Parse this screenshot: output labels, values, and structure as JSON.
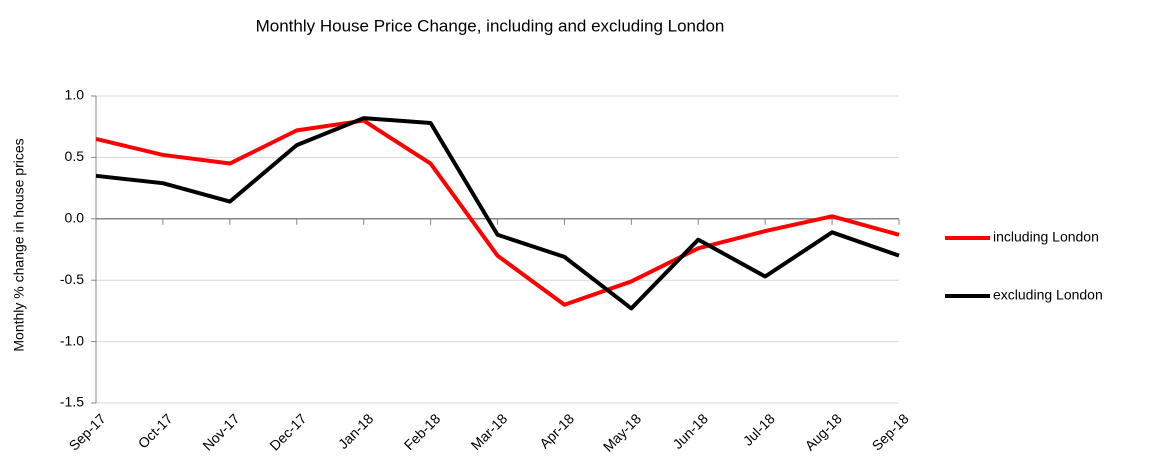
{
  "chart_data": {
    "type": "line",
    "title": "Monthly House Price Change, including and excluding London",
    "y_label": "Monthly % change in house prices",
    "categories": [
      "Sep-17",
      "Oct-17",
      "Nov-17",
      "Dec-17",
      "Jan-18",
      "Feb-18",
      "Mar-18",
      "Apr-18",
      "May-18",
      "Jun-18",
      "Jul-18",
      "Aug-18",
      "Sep-18"
    ],
    "series": [
      {
        "name": "including London",
        "color": "#ff0000",
        "values": [
          0.65,
          0.52,
          0.45,
          0.72,
          0.8,
          0.45,
          -0.3,
          -0.7,
          -0.51,
          -0.24,
          -0.1,
          0.02,
          -0.13
        ]
      },
      {
        "name": "excluding London",
        "color": "#000000",
        "values": [
          0.35,
          0.29,
          0.14,
          0.6,
          0.82,
          0.78,
          -0.13,
          -0.31,
          -0.73,
          -0.17,
          -0.47,
          -0.11,
          -0.3
        ]
      }
    ],
    "ylim": [
      -1.5,
      1.0
    ],
    "yticks": [
      {
        "value": -1.5,
        "label": "-1.5"
      },
      {
        "value": -1,
        "label": "-1.0"
      },
      {
        "value": -0.5,
        "label": "-0.5"
      },
      {
        "value": 0,
        "label": "0.0"
      },
      {
        "value": 0.5,
        "label": "0.5"
      },
      {
        "value": 1,
        "label": "1.0"
      }
    ],
    "grid": true,
    "legend": "right"
  }
}
